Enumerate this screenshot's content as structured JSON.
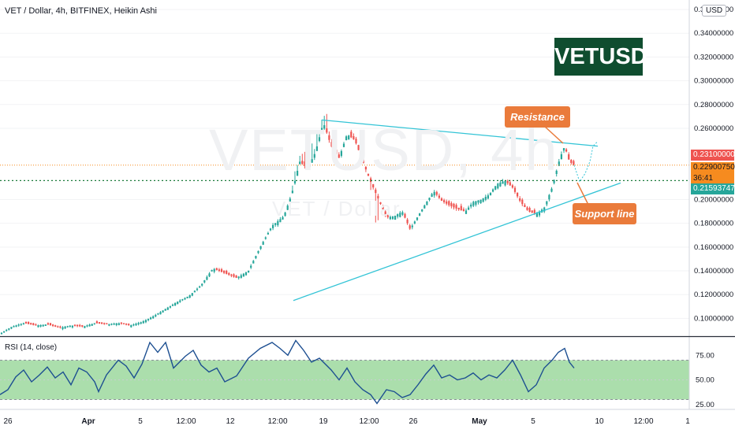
{
  "header": {
    "title": "VET / Dollar, 4h, BITFINEX, Heikin Ashi",
    "currency": "USD"
  },
  "watermark": {
    "main": "VETUSD, 4h",
    "sub": "VET / Dollar"
  },
  "brand_label": "VETUSD",
  "annotations": {
    "resistance": "Resistance",
    "support": "Support line"
  },
  "price_labels": {
    "last_high": "0.23100000",
    "current": "0.22900750",
    "countdown": "36:41",
    "support_level": "0.21593747"
  },
  "rsi_panel": {
    "label": "RSI (14, close)"
  },
  "colors": {
    "up": "#26a69a",
    "down": "#ef5350",
    "trendline": "#33c4d6",
    "rsi_line": "#1d4f91",
    "rsi_band": "#a6dca8",
    "callout": "#ea7b3b",
    "brand_bg": "#0f4d2f",
    "current_tag": "#f68b1f",
    "high_tag": "#ef5350",
    "support_tag": "#26a69a"
  },
  "chart_data": [
    {
      "type": "candlestick",
      "title": "VET / Dollar, 4h, BITFINEX, Heikin Ashi",
      "y_axis": {
        "ticks": [
          "0.10000000",
          "0.12000000",
          "0.14000000",
          "0.16000000",
          "0.18000000",
          "0.20000000",
          "0.26000000",
          "0.28000000",
          "0.30000000",
          "0.32000000",
          "0.34000000",
          "0.36000000"
        ],
        "range": [
          0.085,
          0.368
        ]
      },
      "x_axis": {
        "ticks": [
          "26",
          "Apr",
          "5",
          "12:00",
          "12",
          "12:00",
          "19",
          "12:00",
          "26",
          "May",
          "5",
          "10",
          "12:00",
          "1"
        ]
      },
      "price_path": [
        [
          0,
          0.087
        ],
        [
          15,
          0.093
        ],
        [
          30,
          0.096
        ],
        [
          45,
          0.094
        ],
        [
          60,
          0.095
        ],
        [
          75,
          0.092
        ],
        [
          90,
          0.094
        ],
        [
          105,
          0.093
        ],
        [
          120,
          0.096
        ],
        [
          135,
          0.095
        ],
        [
          150,
          0.096
        ],
        [
          165,
          0.094
        ],
        [
          180,
          0.097
        ],
        [
          195,
          0.102
        ],
        [
          210,
          0.108
        ],
        [
          225,
          0.114
        ],
        [
          240,
          0.119
        ],
        [
          255,
          0.128
        ],
        [
          270,
          0.142
        ],
        [
          285,
          0.138
        ],
        [
          300,
          0.134
        ],
        [
          315,
          0.14
        ],
        [
          330,
          0.16
        ],
        [
          345,
          0.178
        ],
        [
          360,
          0.186
        ],
        [
          370,
          0.205
        ],
        [
          380,
          0.232
        ],
        [
          390,
          0.226
        ],
        [
          400,
          0.24
        ],
        [
          410,
          0.265
        ],
        [
          420,
          0.245
        ],
        [
          430,
          0.235
        ],
        [
          440,
          0.255
        ],
        [
          450,
          0.25
        ],
        [
          460,
          0.232
        ],
        [
          470,
          0.215
        ],
        [
          480,
          0.2
        ],
        [
          490,
          0.185
        ],
        [
          500,
          0.186
        ],
        [
          510,
          0.19
        ],
        [
          520,
          0.175
        ],
        [
          530,
          0.186
        ],
        [
          540,
          0.197
        ],
        [
          550,
          0.207
        ],
        [
          560,
          0.199
        ],
        [
          570,
          0.195
        ],
        [
          580,
          0.192
        ],
        [
          590,
          0.19
        ],
        [
          600,
          0.198
        ],
        [
          610,
          0.2
        ],
        [
          620,
          0.204
        ],
        [
          630,
          0.213
        ],
        [
          640,
          0.216
        ],
        [
          650,
          0.21
        ],
        [
          660,
          0.198
        ],
        [
          670,
          0.19
        ],
        [
          680,
          0.188
        ],
        [
          690,
          0.193
        ],
        [
          700,
          0.21
        ],
        [
          710,
          0.235
        ],
        [
          716,
          0.245
        ],
        [
          722,
          0.232
        ],
        [
          728,
          0.229
        ]
      ],
      "resistance_line": [
        [
          408,
          0.267
        ],
        [
          758,
          0.245
        ]
      ],
      "support_line": [
        [
          372,
          0.115
        ],
        [
          787,
          0.214
        ]
      ],
      "projection": [
        [
          728,
          0.229
        ],
        [
          735,
          0.215
        ],
        [
          742,
          0.222
        ],
        [
          748,
          0.232
        ],
        [
          752,
          0.245
        ],
        [
          758,
          0.249
        ]
      ],
      "horizontal_levels": [
        0.229,
        0.216
      ]
    },
    {
      "type": "line",
      "title": "RSI (14, close)",
      "y_axis": {
        "ticks": [
          "75.00",
          "50.00",
          "25.00"
        ],
        "range": [
          20,
          92
        ]
      },
      "band": [
        30,
        70
      ],
      "rsi_path": [
        [
          0,
          35
        ],
        [
          10,
          40
        ],
        [
          20,
          53
        ],
        [
          30,
          60
        ],
        [
          40,
          48
        ],
        [
          50,
          55
        ],
        [
          60,
          63
        ],
        [
          70,
          52
        ],
        [
          80,
          58
        ],
        [
          90,
          45
        ],
        [
          100,
          62
        ],
        [
          110,
          58
        ],
        [
          120,
          48
        ],
        [
          125,
          38
        ],
        [
          135,
          55
        ],
        [
          150,
          70
        ],
        [
          160,
          64
        ],
        [
          170,
          52
        ],
        [
          180,
          66
        ],
        [
          190,
          88
        ],
        [
          200,
          78
        ],
        [
          210,
          88
        ],
        [
          220,
          62
        ],
        [
          235,
          74
        ],
        [
          245,
          80
        ],
        [
          255,
          65
        ],
        [
          265,
          58
        ],
        [
          275,
          62
        ],
        [
          285,
          48
        ],
        [
          300,
          54
        ],
        [
          315,
          72
        ],
        [
          330,
          82
        ],
        [
          345,
          88
        ],
        [
          355,
          82
        ],
        [
          365,
          75
        ],
        [
          375,
          90
        ],
        [
          385,
          80
        ],
        [
          395,
          68
        ],
        [
          405,
          72
        ],
        [
          420,
          60
        ],
        [
          430,
          50
        ],
        [
          440,
          62
        ],
        [
          450,
          48
        ],
        [
          460,
          40
        ],
        [
          470,
          35
        ],
        [
          478,
          26
        ],
        [
          490,
          40
        ],
        [
          500,
          38
        ],
        [
          510,
          32
        ],
        [
          520,
          35
        ],
        [
          530,
          45
        ],
        [
          540,
          56
        ],
        [
          550,
          65
        ],
        [
          560,
          52
        ],
        [
          570,
          55
        ],
        [
          580,
          50
        ],
        [
          590,
          52
        ],
        [
          600,
          57
        ],
        [
          610,
          50
        ],
        [
          620,
          55
        ],
        [
          630,
          52
        ],
        [
          640,
          60
        ],
        [
          650,
          70
        ],
        [
          660,
          55
        ],
        [
          670,
          38
        ],
        [
          680,
          45
        ],
        [
          690,
          62
        ],
        [
          700,
          70
        ],
        [
          708,
          78
        ],
        [
          716,
          82
        ],
        [
          722,
          68
        ],
        [
          728,
          62
        ]
      ]
    }
  ]
}
